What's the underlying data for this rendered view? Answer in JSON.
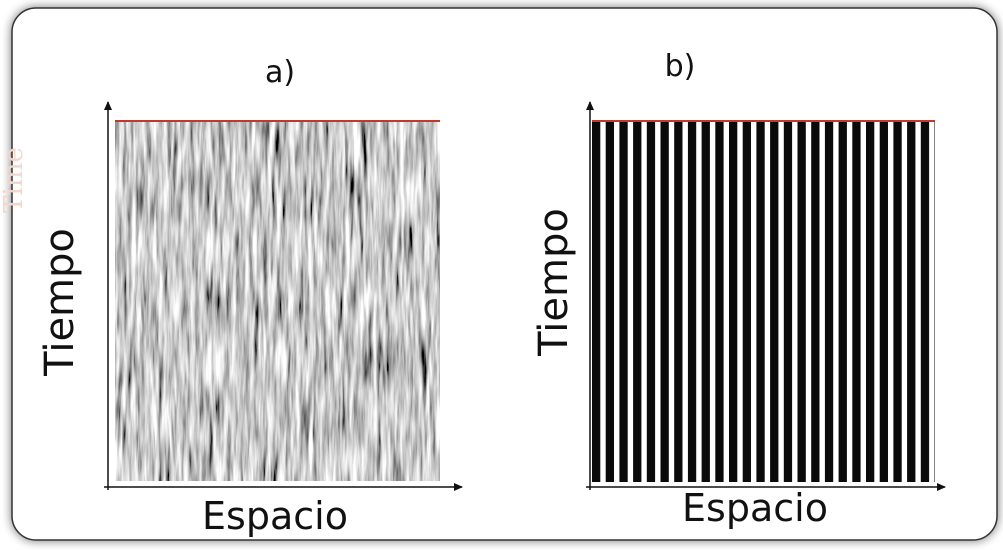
{
  "ghost_label": "Time",
  "panels": [
    {
      "label": "a)",
      "y_label": "Tiempo",
      "x_label": "Espacio"
    },
    {
      "label": "b)",
      "y_label": "Tiempo",
      "x_label": "Espacio"
    }
  ]
}
